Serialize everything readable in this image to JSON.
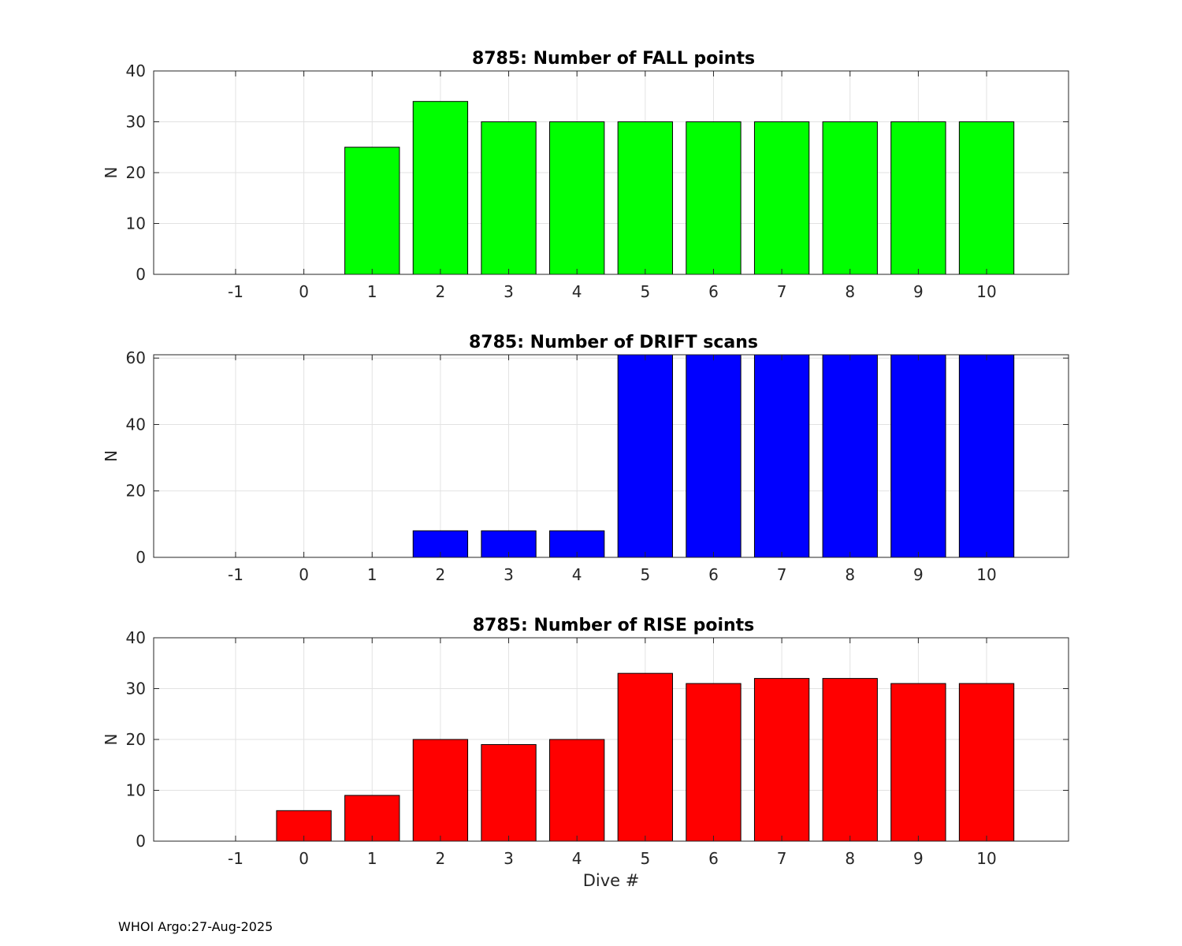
{
  "footer": "WHOI Argo:27-Aug-2025",
  "chart_data": [
    {
      "type": "bar",
      "title": "8785: Number of FALL points",
      "xlabel": "",
      "ylabel": "N",
      "categories": [
        -1,
        0,
        1,
        2,
        3,
        4,
        5,
        6,
        7,
        8,
        9,
        10
      ],
      "values": [
        0,
        0,
        25,
        34,
        30,
        30,
        30,
        30,
        30,
        30,
        30,
        30
      ],
      "ylim": [
        0,
        40
      ],
      "yticks": [
        0,
        10,
        20,
        30,
        40
      ],
      "xlim": [
        -2.2,
        11.2
      ],
      "grid": true,
      "color": "#00ff00"
    },
    {
      "type": "bar",
      "title": "8785: Number of DRIFT scans",
      "xlabel": "",
      "ylabel": "N",
      "categories": [
        -1,
        0,
        1,
        2,
        3,
        4,
        5,
        6,
        7,
        8,
        9,
        10
      ],
      "values": [
        0,
        0,
        0,
        8,
        8,
        8,
        61,
        61,
        61,
        61,
        61,
        61
      ],
      "ylim": [
        0,
        61
      ],
      "yticks": [
        0,
        20,
        40,
        60
      ],
      "xlim": [
        -2.2,
        11.2
      ],
      "grid": true,
      "color": "#0000ff"
    },
    {
      "type": "bar",
      "title": "8785: Number of RISE points",
      "xlabel": "Dive #",
      "ylabel": "N",
      "categories": [
        -1,
        0,
        1,
        2,
        3,
        4,
        5,
        6,
        7,
        8,
        9,
        10
      ],
      "values": [
        0,
        6,
        9,
        20,
        19,
        20,
        33,
        31,
        32,
        32,
        31,
        31
      ],
      "ylim": [
        0,
        40
      ],
      "yticks": [
        0,
        10,
        20,
        30,
        40
      ],
      "xlim": [
        -2.2,
        11.2
      ],
      "grid": true,
      "color": "#ff0000"
    }
  ]
}
